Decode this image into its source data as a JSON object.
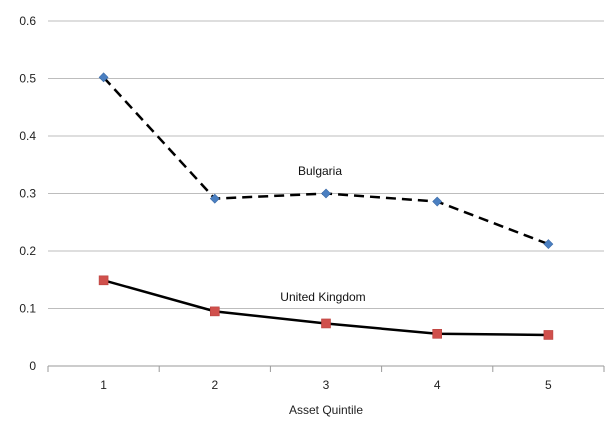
{
  "chart_data": {
    "type": "line",
    "x": [
      1,
      2,
      3,
      4,
      5
    ],
    "x_tick_labels": [
      "1",
      "2",
      "3",
      "4",
      "5"
    ],
    "xlabel": "Asset Quintile",
    "ylabel": "",
    "title": "",
    "ylim": [
      0,
      0.6
    ],
    "y_ticks": [
      0,
      0.1,
      0.2,
      0.3,
      0.4,
      0.5,
      0.6
    ],
    "y_tick_labels": [
      "0",
      "0.1",
      "0.2",
      "0.3",
      "0.4",
      "0.5",
      "0.6"
    ],
    "grid": "horizontal",
    "legend": "none",
    "series": [
      {
        "name": "Bulgaria",
        "values": [
          0.502,
          0.291,
          0.3,
          0.286,
          0.212
        ],
        "line_style": "dashed",
        "line_color": "#000000",
        "marker": "diamond",
        "marker_color": "#4a7fc1"
      },
      {
        "name": "United Kingdom",
        "values": [
          0.149,
          0.095,
          0.074,
          0.056,
          0.054
        ],
        "line_style": "solid",
        "line_color": "#000000",
        "marker": "square",
        "marker_color": "#d0504c"
      }
    ]
  }
}
